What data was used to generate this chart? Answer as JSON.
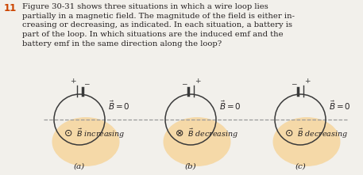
{
  "bg_color": "#f2f0eb",
  "text_color": "#231f20",
  "orange_color": "#cc4400",
  "field_color": "#f5d9a8",
  "question_number": "11",
  "question_text": "Figure 30-31 shows three situations in which a wire loop lies\npartially in a magnetic field. The magnitude of the field is either in-\ncreasing or decreasing, as indicated. In each situation, a battery is\npart of the loop. In which situations are the induced emf and the\nbattery emf in the same direction along the loop?",
  "panels": [
    {
      "label": "(a)",
      "battery_left_sign": "+",
      "battery_right_sign": "−",
      "field_symbol": "⊙",
      "field_direction": "increasing"
    },
    {
      "label": "(b)",
      "battery_left_sign": "−",
      "battery_right_sign": "+",
      "field_symbol": "⊗",
      "field_direction": "decreasing"
    },
    {
      "label": "(c)",
      "battery_left_sign": "−",
      "battery_right_sign": "+",
      "field_symbol": "⊙",
      "field_direction": "decreasing"
    }
  ]
}
